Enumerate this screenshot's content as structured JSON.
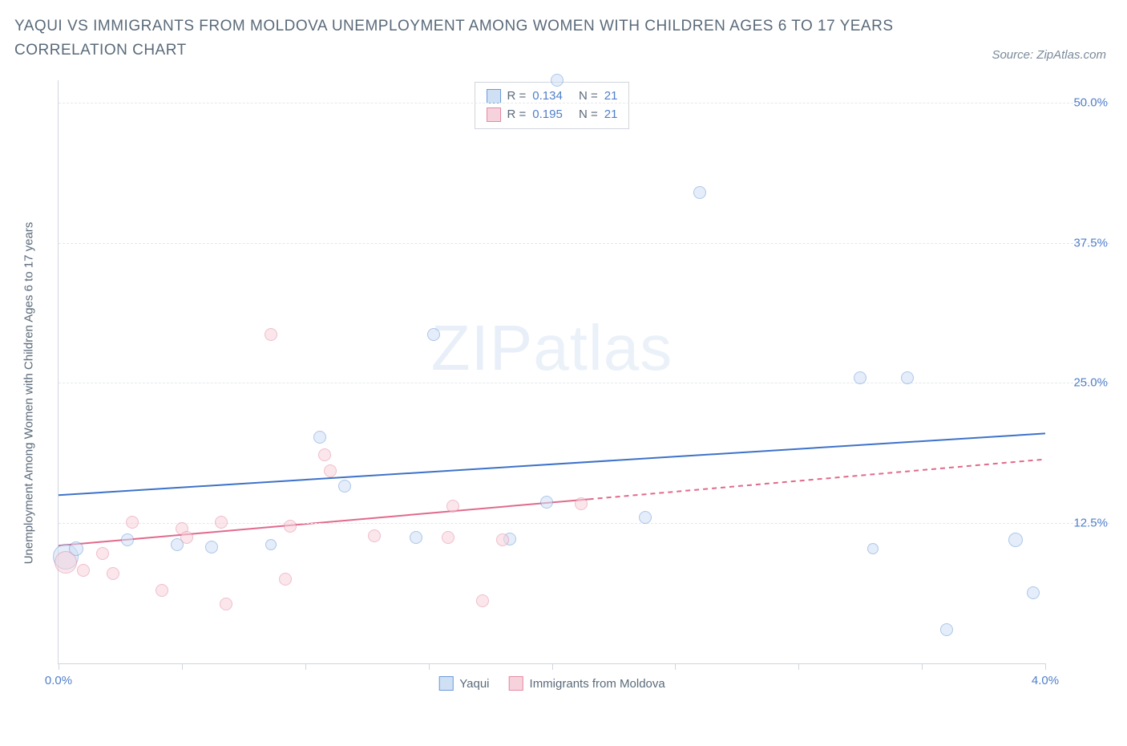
{
  "title": "YAQUI VS IMMIGRANTS FROM MOLDOVA UNEMPLOYMENT AMONG WOMEN WITH CHILDREN AGES 6 TO 17 YEARS CORRELATION CHART",
  "source_label": "Source: ZipAtlas.com",
  "y_axis_label": "Unemployment Among Women with Children Ages 6 to 17 years",
  "watermark_bold": "ZIP",
  "watermark_thin": "atlas",
  "chart": {
    "type": "scatter",
    "xlim": [
      0.0,
      4.0
    ],
    "ylim": [
      0.0,
      52.0
    ],
    "x_ticks": [
      0.0,
      0.5,
      1.0,
      1.5,
      2.0,
      2.5,
      3.0,
      3.5,
      4.0
    ],
    "x_tick_labels": {
      "0": "0.0%",
      "4": "4.0%"
    },
    "y_ticks": [
      12.5,
      25.0,
      37.5,
      50.0
    ],
    "y_tick_labels": [
      "12.5%",
      "25.0%",
      "37.5%",
      "50.0%"
    ],
    "grid_color": "#e4e8ec",
    "axis_color": "#cfd6dd",
    "background_color": "#ffffff",
    "label_color": "#4f7fc9",
    "title_color": "#5a6a7a",
    "title_fontsize": 19,
    "tick_fontsize": 15
  },
  "series": [
    {
      "name": "Yaqui",
      "fill": "#cfe0f5",
      "stroke": "#6a9bd8",
      "fill_opacity": 0.55,
      "r_label": "R =",
      "r_value": "0.134",
      "n_label": "N =",
      "n_value": "21",
      "trend": {
        "x1": 0.0,
        "y1": 15.0,
        "x2": 4.0,
        "y2": 20.5,
        "color": "#3d72c9",
        "width": 2,
        "dash": "",
        "solid_to_x": 4.0
      },
      "points": [
        {
          "x": 0.03,
          "y": 9.5,
          "r": 16
        },
        {
          "x": 0.07,
          "y": 10.2,
          "r": 9
        },
        {
          "x": 0.28,
          "y": 11.0,
          "r": 8
        },
        {
          "x": 0.48,
          "y": 10.6,
          "r": 8
        },
        {
          "x": 0.62,
          "y": 10.4,
          "r": 8
        },
        {
          "x": 1.06,
          "y": 20.2,
          "r": 8
        },
        {
          "x": 1.16,
          "y": 15.8,
          "r": 8
        },
        {
          "x": 1.45,
          "y": 11.2,
          "r": 8
        },
        {
          "x": 1.52,
          "y": 29.3,
          "r": 8
        },
        {
          "x": 1.83,
          "y": 11.1,
          "r": 8
        },
        {
          "x": 1.98,
          "y": 14.4,
          "r": 8
        },
        {
          "x": 2.02,
          "y": 52.0,
          "r": 8
        },
        {
          "x": 2.38,
          "y": 13.0,
          "r": 8
        },
        {
          "x": 2.6,
          "y": 42.0,
          "r": 8
        },
        {
          "x": 3.25,
          "y": 25.5,
          "r": 8
        },
        {
          "x": 3.44,
          "y": 25.5,
          "r": 8
        },
        {
          "x": 3.6,
          "y": 3.0,
          "r": 8
        },
        {
          "x": 3.88,
          "y": 11.0,
          "r": 9
        },
        {
          "x": 3.95,
          "y": 6.3,
          "r": 8
        },
        {
          "x": 3.3,
          "y": 10.2,
          "r": 7
        },
        {
          "x": 0.86,
          "y": 10.6,
          "r": 7
        }
      ]
    },
    {
      "name": "Immigrants from Moldova",
      "fill": "#f6d3dc",
      "stroke": "#e48aa4",
      "fill_opacity": 0.55,
      "r_label": "R =",
      "r_value": "0.195",
      "n_label": "N =",
      "n_value": "21",
      "trend": {
        "x1": 0.0,
        "y1": 10.5,
        "x2": 4.0,
        "y2": 18.2,
        "color": "#e06a8c",
        "width": 2,
        "dash": "6,5",
        "solid_to_x": 2.15
      },
      "points": [
        {
          "x": 0.03,
          "y": 9.0,
          "r": 14
        },
        {
          "x": 0.1,
          "y": 8.3,
          "r": 8
        },
        {
          "x": 0.18,
          "y": 9.8,
          "r": 8
        },
        {
          "x": 0.22,
          "y": 8.0,
          "r": 8
        },
        {
          "x": 0.3,
          "y": 12.6,
          "r": 8
        },
        {
          "x": 0.42,
          "y": 6.5,
          "r": 8
        },
        {
          "x": 0.5,
          "y": 12.0,
          "r": 8
        },
        {
          "x": 0.52,
          "y": 11.2,
          "r": 8
        },
        {
          "x": 0.66,
          "y": 12.6,
          "r": 8
        },
        {
          "x": 0.68,
          "y": 5.3,
          "r": 8
        },
        {
          "x": 0.86,
          "y": 29.3,
          "r": 8
        },
        {
          "x": 0.92,
          "y": 7.5,
          "r": 8
        },
        {
          "x": 0.94,
          "y": 12.2,
          "r": 8
        },
        {
          "x": 1.08,
          "y": 18.6,
          "r": 8
        },
        {
          "x": 1.1,
          "y": 17.2,
          "r": 8
        },
        {
          "x": 1.28,
          "y": 11.4,
          "r": 8
        },
        {
          "x": 1.58,
          "y": 11.2,
          "r": 8
        },
        {
          "x": 1.6,
          "y": 14.0,
          "r": 8
        },
        {
          "x": 1.72,
          "y": 5.6,
          "r": 8
        },
        {
          "x": 1.8,
          "y": 11.0,
          "r": 8
        },
        {
          "x": 2.12,
          "y": 14.2,
          "r": 8
        }
      ]
    }
  ],
  "legend_bottom": [
    {
      "swatch_fill": "#cfe0f5",
      "swatch_stroke": "#6a9bd8",
      "label": "Yaqui"
    },
    {
      "swatch_fill": "#f6d3dc",
      "swatch_stroke": "#e48aa4",
      "label": "Immigrants from Moldova"
    }
  ]
}
